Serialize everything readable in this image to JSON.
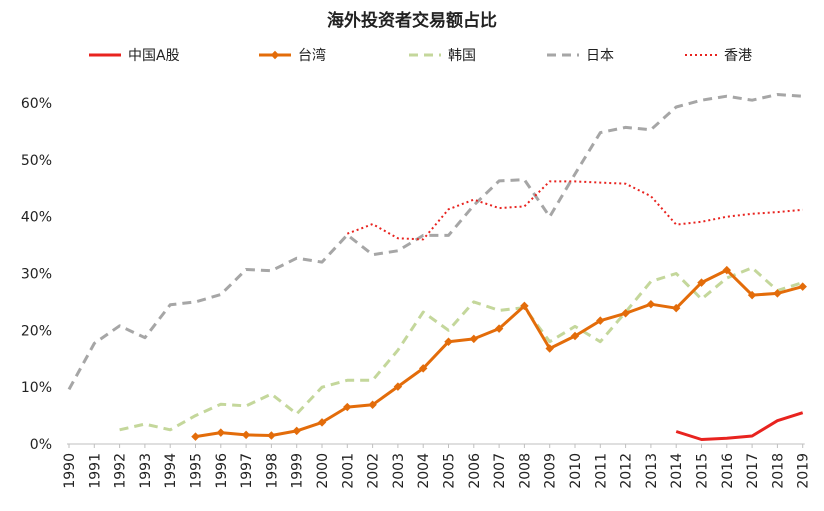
{
  "chart_data": {
    "type": "line",
    "title": "海外投资者交易额占比",
    "xlabel": "",
    "ylabel": "",
    "ylim": [
      0,
      0.62
    ],
    "yticks": [
      0,
      0.1,
      0.2,
      0.3,
      0.4,
      0.5,
      0.6
    ],
    "ytick_labels": [
      "0%",
      "10%",
      "20%",
      "30%",
      "40%",
      "50%",
      "60%"
    ],
    "categories": [
      "1990",
      "1991",
      "1992",
      "1993",
      "1994",
      "1995",
      "1996",
      "1997",
      "1998",
      "1999",
      "2000",
      "2001",
      "2002",
      "2003",
      "2004",
      "2005",
      "2006",
      "2007",
      "2008",
      "2009",
      "2010",
      "2011",
      "2012",
      "2013",
      "2014",
      "2015",
      "2016",
      "2017",
      "2018",
      "2019"
    ],
    "legend_position": "top",
    "grid": false,
    "series": [
      {
        "name": "中国A股",
        "color": "#e8231f",
        "style": "solid",
        "marker": false,
        "values": [
          null,
          null,
          null,
          null,
          null,
          null,
          null,
          null,
          null,
          null,
          null,
          null,
          null,
          null,
          null,
          null,
          null,
          null,
          null,
          null,
          null,
          null,
          null,
          null,
          0.022,
          0.008,
          0.01,
          0.014,
          0.041,
          0.055
        ]
      },
      {
        "name": "台湾",
        "color": "#e36c0a",
        "style": "solid",
        "marker": true,
        "values": [
          null,
          null,
          null,
          null,
          null,
          0.013,
          0.02,
          0.016,
          0.015,
          0.023,
          0.038,
          0.065,
          0.069,
          0.101,
          0.133,
          0.18,
          0.185,
          0.203,
          0.243,
          0.168,
          0.19,
          0.217,
          0.23,
          0.246,
          0.239,
          0.284,
          0.306,
          0.262,
          0.265,
          0.277
        ]
      },
      {
        "name": "韩国",
        "color": "#c4d79b",
        "style": "dashed",
        "marker": false,
        "values": [
          null,
          null,
          0.025,
          0.035,
          0.025,
          0.05,
          0.07,
          0.067,
          0.088,
          0.053,
          0.1,
          0.112,
          0.112,
          0.165,
          0.232,
          0.2,
          0.25,
          0.235,
          0.24,
          0.18,
          0.207,
          0.18,
          0.232,
          0.286,
          0.3,
          0.255,
          0.292,
          0.31,
          0.27,
          0.284
        ]
      },
      {
        "name": "日本",
        "color": "#a6a6a6",
        "style": "dashed",
        "marker": false,
        "values": [
          0.096,
          0.177,
          0.208,
          0.187,
          0.245,
          0.25,
          0.263,
          0.307,
          0.305,
          0.327,
          0.32,
          0.368,
          0.333,
          0.34,
          0.367,
          0.367,
          0.42,
          0.463,
          0.465,
          0.4,
          0.475,
          0.548,
          0.557,
          0.553,
          0.593,
          0.605,
          0.612,
          0.605,
          0.615,
          0.612
        ]
      },
      {
        "name": "香港",
        "color": "#e8231f",
        "style": "dotted",
        "marker": false,
        "values": [
          null,
          null,
          null,
          null,
          null,
          null,
          null,
          null,
          null,
          null,
          null,
          0.37,
          0.387,
          0.362,
          0.36,
          0.413,
          0.43,
          0.415,
          0.418,
          0.462,
          0.462,
          0.46,
          0.458,
          0.436,
          0.386,
          0.391,
          0.4,
          0.405,
          0.408,
          0.412
        ]
      }
    ]
  }
}
